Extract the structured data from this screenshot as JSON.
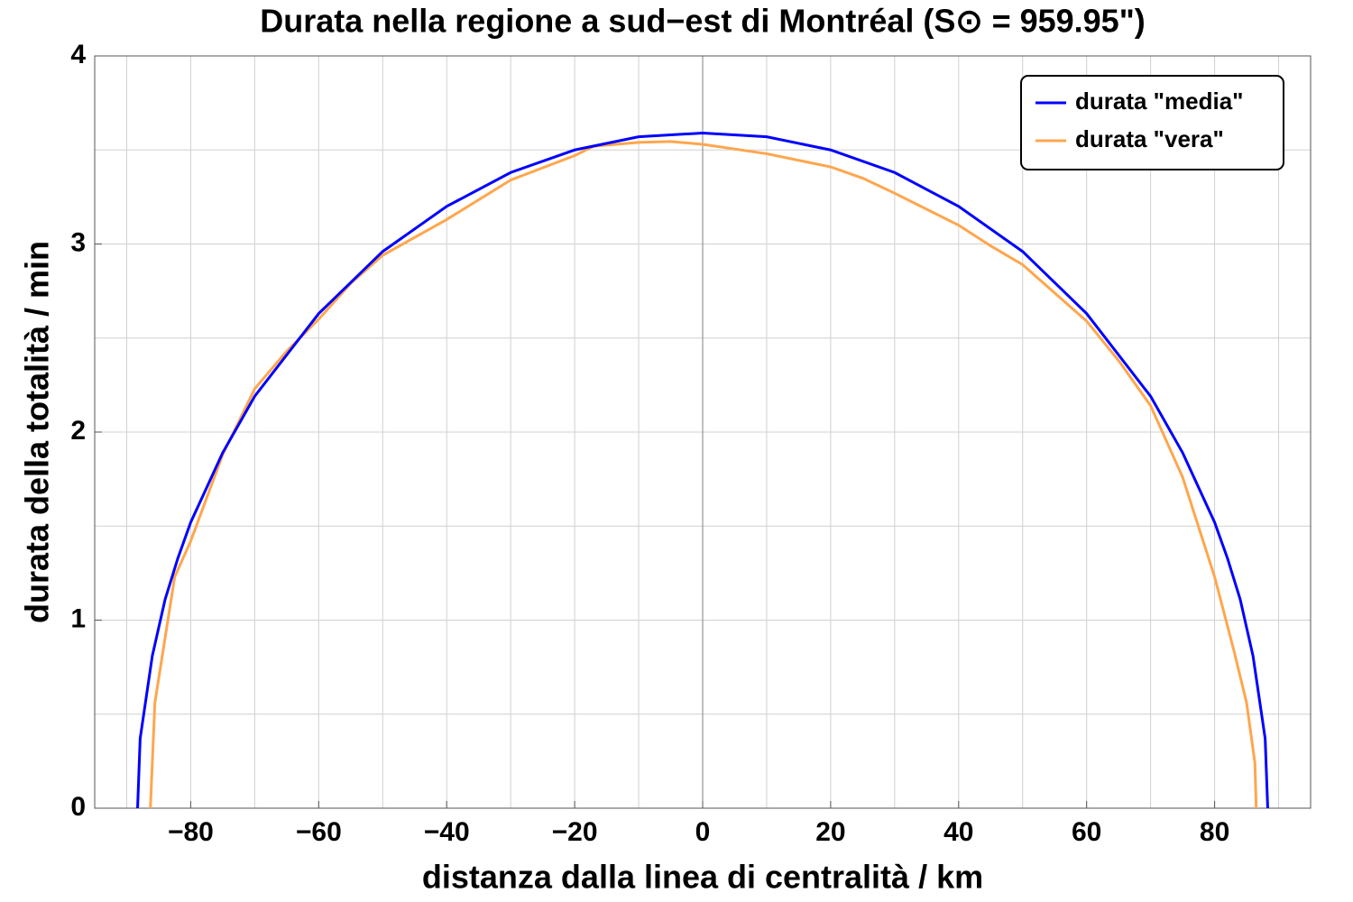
{
  "chart_data": {
    "type": "line",
    "title": "Durata nella regione a sud−est di Montréal (S⊙ = 959.95\")",
    "x_label": "distanza dalla linea di centralità / km",
    "y_label": "durata della totalità / min",
    "xlim": [
      -95,
      95
    ],
    "ylim": [
      0,
      4
    ],
    "xticks": [
      {
        "value": -80,
        "label": "−80"
      },
      {
        "value": -60,
        "label": "−60"
      },
      {
        "value": -40,
        "label": "−40"
      },
      {
        "value": -20,
        "label": "−20"
      },
      0,
      20,
      40,
      60,
      80
    ],
    "yticks": [
      0,
      1,
      2,
      3,
      4
    ],
    "xgrid": [
      -90,
      -80,
      -70,
      -60,
      -50,
      -40,
      -30,
      -20,
      -10,
      10,
      20,
      30,
      40,
      50,
      60,
      70,
      80,
      90
    ],
    "ygrid": [
      0.5,
      1,
      1.5,
      2,
      2.5,
      3,
      3.5
    ],
    "grid": true,
    "legend": "top-right",
    "series": [
      {
        "name": "durata \"media\"",
        "color": "#0000ff",
        "x": [
          -88.3,
          -87.9,
          -86,
          -84,
          -82,
          -80,
          -75,
          -70,
          -60,
          -50,
          -40,
          -30,
          -20,
          -10,
          0,
          10,
          20,
          30,
          40,
          50,
          60,
          70,
          75,
          80,
          82,
          84,
          86,
          87.9,
          88.3
        ],
        "values": [
          0,
          0.37,
          0.81,
          1.11,
          1.33,
          1.52,
          1.89,
          2.19,
          2.63,
          2.96,
          3.2,
          3.38,
          3.5,
          3.57,
          3.59,
          3.57,
          3.5,
          3.38,
          3.2,
          2.96,
          2.63,
          2.19,
          1.89,
          1.52,
          1.33,
          1.11,
          0.81,
          0.37,
          0
        ]
      },
      {
        "name": "durata \"vera\"",
        "color": "#ffa64d",
        "x": [
          -86.3,
          -85.6,
          -82.5,
          -80,
          -75,
          -70,
          -65,
          -60,
          -55,
          -50,
          -40,
          -30,
          -20,
          -17,
          -10,
          -5,
          0,
          10,
          20,
          25,
          30,
          40,
          45,
          50,
          55,
          60,
          65,
          70,
          75,
          80,
          83,
          85,
          86.3,
          86.5
        ],
        "values": [
          0,
          0.56,
          1.23,
          1.42,
          1.88,
          2.23,
          2.43,
          2.6,
          2.79,
          2.94,
          3.13,
          3.34,
          3.47,
          3.52,
          3.54,
          3.545,
          3.53,
          3.48,
          3.41,
          3.35,
          3.27,
          3.1,
          2.99,
          2.89,
          2.74,
          2.59,
          2.38,
          2.14,
          1.76,
          1.23,
          0.84,
          0.56,
          0.24,
          0
        ]
      }
    ]
  }
}
